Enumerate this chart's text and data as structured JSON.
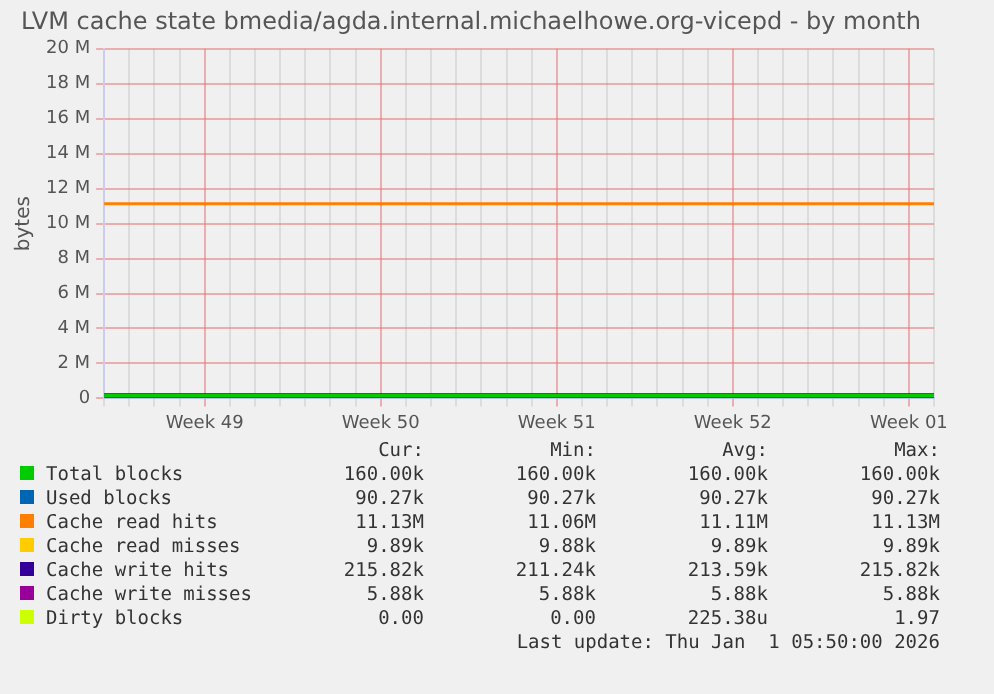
{
  "chart_data": {
    "type": "line",
    "title": "LVM cache state bmedia/agda.internal.michaelhowe.org-vicepd - by month",
    "ylabel": "bytes",
    "categories": [
      null,
      null,
      null,
      null,
      "Week 49",
      null,
      null,
      null,
      null,
      null,
      null,
      "Week 50",
      null,
      null,
      null,
      null,
      null,
      null,
      "Week 51",
      null,
      null,
      null,
      null,
      null,
      null,
      "Week 52",
      null,
      null,
      null,
      null,
      null,
      null,
      "Week 01",
      null
    ],
    "ylim": [
      0,
      20000000
    ],
    "yticks": [
      0,
      {
        "value": 2000000,
        "label": "2 M"
      },
      {
        "value": 4000000,
        "label": "4 M"
      },
      {
        "value": 6000000,
        "label": "6 M"
      },
      {
        "value": 8000000,
        "label": "8 M"
      },
      {
        "value": 10000000,
        "label": "10 M"
      },
      {
        "value": 12000000,
        "label": "12 M"
      },
      {
        "value": 14000000,
        "label": "14 M"
      },
      {
        "value": 16000000,
        "label": "16 M"
      },
      {
        "value": 18000000,
        "label": "18 M"
      },
      {
        "value": 20000000,
        "label": "20 M"
      }
    ],
    "series": [
      {
        "name": "Total blocks",
        "color": "#00cc00",
        "values": [
          160000,
          160000,
          160000,
          160000,
          null,
          160000,
          160000,
          160000,
          160000,
          160000,
          160000,
          160000,
          160000,
          160000,
          160000,
          160000,
          160000,
          160000,
          160000,
          160000,
          160000,
          160000,
          160000,
          160000,
          160000,
          160000,
          160000,
          160000,
          160000,
          160000,
          160000,
          160000,
          160000,
          160000
        ]
      },
      {
        "name": "Used blocks",
        "color": "#0066b3",
        "values": [
          90270,
          90270,
          90270,
          90270,
          null,
          90270,
          90270,
          90270,
          90270,
          90270,
          90270,
          90270,
          90270,
          90270,
          90270,
          90270,
          90270,
          90270,
          90270,
          90270,
          90270,
          90270,
          90270,
          90270,
          90270,
          90270,
          90270,
          90270,
          90270,
          90270,
          90270,
          90270,
          90270,
          90270
        ]
      },
      {
        "name": "Cache read hits",
        "color": "#ff8000",
        "values": [
          11130000,
          11130000,
          11130000,
          11130000,
          null,
          11130000,
          11130000,
          11130000,
          11130000,
          11130000,
          11130000,
          11130000,
          11130000,
          11130000,
          11130000,
          11130000,
          11130000,
          11130000,
          11130000,
          11130000,
          11130000,
          11130000,
          11130000,
          11130000,
          11130000,
          11130000,
          11130000,
          11130000,
          11130000,
          11130000,
          11130000,
          11130000,
          11130000,
          11130000
        ]
      },
      {
        "name": "Cache read misses",
        "color": "#ffcc00",
        "values": [
          null,
          null,
          null,
          null,
          null,
          null,
          null,
          null,
          null,
          null,
          null,
          null,
          null,
          null,
          null,
          null,
          null,
          null,
          null,
          null,
          null,
          null,
          null,
          null,
          null,
          null,
          null,
          null,
          null,
          null,
          null,
          null,
          null,
          null
        ]
      },
      {
        "name": "Cache write hits",
        "color": "#330099",
        "values": [
          215820,
          215820,
          215820,
          215820,
          null,
          215820,
          215820,
          215820,
          215820,
          215820,
          215820,
          215820,
          215820,
          215820,
          215820,
          215820,
          215820,
          215820,
          215820,
          215820,
          215820,
          215820,
          215820,
          215820,
          215820,
          215820,
          215820,
          215820,
          215820,
          215820,
          215820,
          215820,
          215820,
          215820
        ]
      },
      {
        "name": "Cache write misses",
        "color": "#990099",
        "values": [
          null,
          null,
          null,
          null,
          null,
          null,
          null,
          null,
          null,
          null,
          null,
          null,
          null,
          null,
          null,
          null,
          null,
          null,
          null,
          null,
          null,
          null,
          null,
          null,
          null,
          null,
          null,
          null,
          null,
          null,
          null,
          null,
          null,
          null
        ]
      },
      {
        "name": "Dirty blocks",
        "color": "#ccff00",
        "values": [
          null,
          null,
          null,
          null,
          null,
          null,
          null,
          null,
          null,
          null,
          null,
          null,
          null,
          null,
          null,
          null,
          null,
          null,
          null,
          null,
          null,
          null,
          null,
          null,
          null,
          null,
          null,
          null,
          null,
          null,
          null,
          null,
          null,
          null
        ]
      }
    ],
    "annotations": [
      "Cur:",
      "Min:",
      "Avg:",
      "Max:",
      "160.00k",
      "160.00k",
      "160.00k",
      "160.00k",
      "90.27k",
      "90.27k",
      "90.27k",
      "90.27k",
      "11.13M",
      "11.06M",
      "11.11M",
      "11.13M",
      "9.89k",
      "9.88k",
      "9.89k",
      "9.89k",
      "215.82k",
      "211.24k",
      "213.59k",
      "215.82k",
      "5.88k",
      "5.88k",
      "5.88k",
      "5.88k",
      "0.00",
      "0.00",
      "225.38u",
      "1.97",
      "Last update: Thu Jan  1 05:50:00 2026"
    ],
    "grid": true,
    "legend": "bottom",
    "marker": "none",
    "line_style": "solid"
  }
}
